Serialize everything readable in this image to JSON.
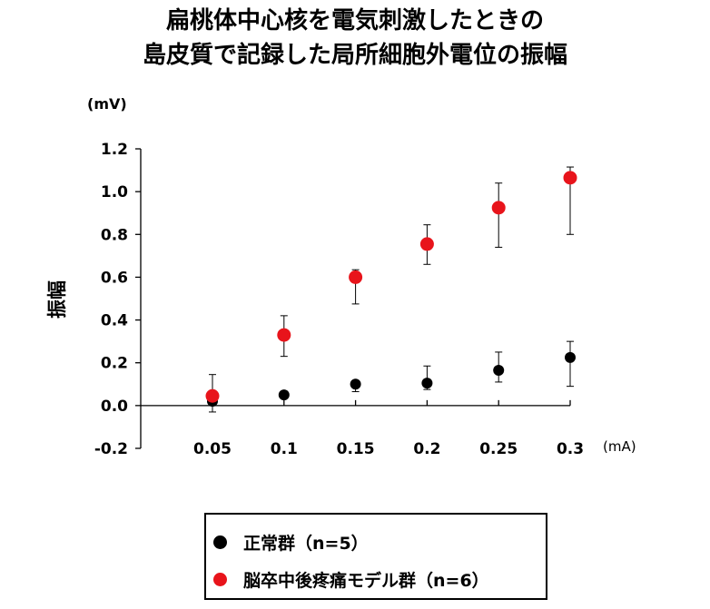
{
  "chart_data": {
    "type": "scatter",
    "title_lines": [
      "扁桃体中心核を電気刺激したときの",
      "島皮質で記録した局所細胞外電位の振幅"
    ],
    "ylabel": "振幅",
    "yunit": "(mV)",
    "xunit": "(mA)",
    "categories": [
      "0.05",
      "0.1",
      "0.15",
      "0.2",
      "0.25",
      "0.3"
    ],
    "ylim": [
      -0.2,
      1.2
    ],
    "yticks": [
      "1.2",
      "1.0",
      "0.8",
      "0.6",
      "0.4",
      "0.2",
      "0.0",
      "-0.2"
    ],
    "ytick_values": [
      1.2,
      1.0,
      0.8,
      0.6,
      0.4,
      0.2,
      0.0,
      -0.2
    ],
    "series": [
      {
        "name": "正常群（n=5）",
        "color": "#000000",
        "values": [
          0.02,
          0.05,
          0.1,
          0.105,
          0.165,
          0.225
        ],
        "err_low": [
          0.0,
          0.05,
          0.065,
          0.075,
          0.11,
          0.09
        ],
        "err_high": [
          0.04,
          0.05,
          0.1,
          0.185,
          0.25,
          0.3
        ]
      },
      {
        "name": "脳卒中後疼痛モデル群（n=6）",
        "color": "#e8141b",
        "values": [
          0.045,
          0.33,
          0.6,
          0.755,
          0.925,
          1.065
        ],
        "err_low": [
          -0.03,
          0.23,
          0.475,
          0.66,
          0.74,
          0.8
        ],
        "err_high": [
          0.145,
          0.42,
          0.635,
          0.845,
          1.04,
          1.115
        ]
      }
    ],
    "legend_position": "bottom-center"
  }
}
